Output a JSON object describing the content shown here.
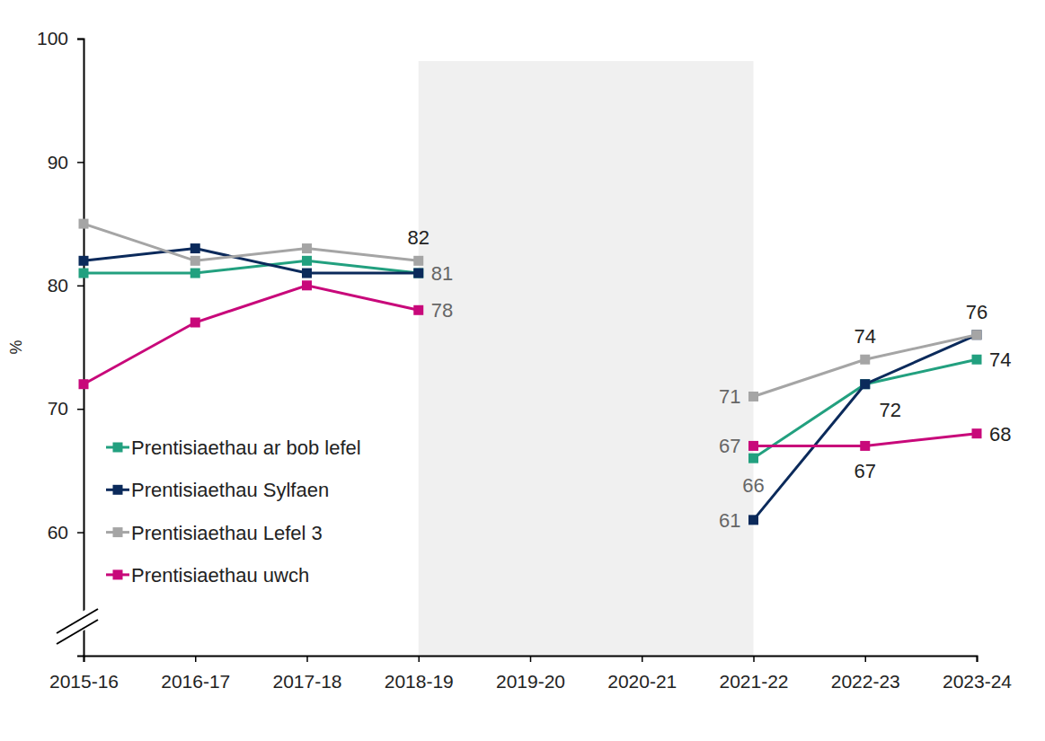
{
  "chart_data": {
    "type": "line",
    "y_label": "%",
    "categories": [
      "2015-16",
      "2016-17",
      "2017-18",
      "2018-19",
      "2019-20",
      "2020-21",
      "2021-22",
      "2022-23",
      "2023-24"
    ],
    "series": [
      {
        "name": "Prentisiaethau ar bob lefel",
        "color": "#22a07f",
        "marker": "square",
        "values": [
          81,
          81,
          82,
          81,
          null,
          null,
          66,
          72,
          74
        ],
        "value_labels": [
          null,
          null,
          null,
          null,
          null,
          null,
          "66",
          null,
          "74"
        ]
      },
      {
        "name": "Prentisiaethau Sylfaen",
        "color": "#0b2a5b",
        "marker": "square",
        "values": [
          82,
          83,
          81,
          81,
          null,
          null,
          61,
          72,
          76
        ],
        "value_labels": [
          null,
          null,
          null,
          "81",
          null,
          null,
          "61",
          "72",
          null
        ]
      },
      {
        "name": "Prentisiaethau Lefel 3",
        "color": "#a5a5a5",
        "marker": "square",
        "values": [
          85,
          82,
          83,
          82,
          null,
          null,
          71,
          74,
          76
        ],
        "value_labels": [
          null,
          null,
          null,
          "82",
          null,
          null,
          "71",
          "74",
          "76"
        ]
      },
      {
        "name": "Prentisiaethau uwch",
        "color": "#c8087a",
        "marker": "square",
        "values": [
          72,
          77,
          80,
          78,
          null,
          null,
          67,
          67,
          68
        ],
        "value_labels": [
          null,
          null,
          null,
          "78",
          null,
          null,
          "67",
          "67",
          "68"
        ]
      }
    ],
    "ylim": [
      50,
      100
    ],
    "yticks": [
      60,
      70,
      80,
      90,
      100
    ],
    "grid": false,
    "legend": "lower left",
    "data_labels": true
  }
}
